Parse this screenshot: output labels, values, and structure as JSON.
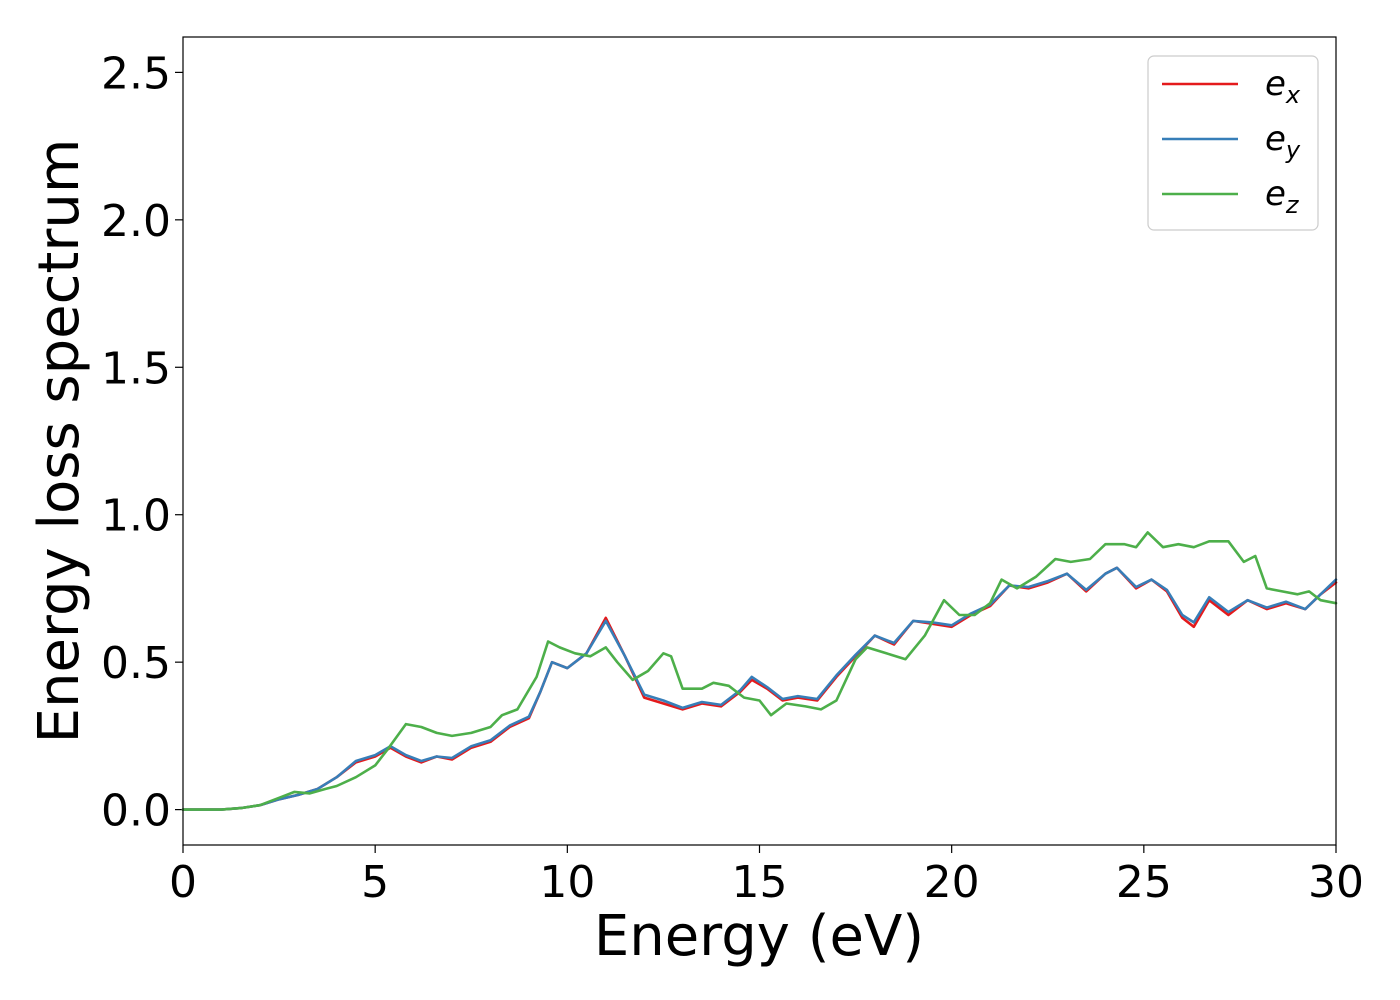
{
  "chart_data": {
    "type": "line",
    "title": "",
    "xlabel": "Energy (eV)",
    "ylabel": "Energy loss spectrum",
    "xlim": [
      0,
      30
    ],
    "ylim": [
      -0.12,
      2.62
    ],
    "xticks": [
      0,
      5,
      10,
      15,
      20,
      25,
      30
    ],
    "xtick_labels": [
      "0",
      "5",
      "10",
      "15",
      "20",
      "25",
      "30"
    ],
    "yticks": [
      0.0,
      0.5,
      1.0,
      1.5,
      2.0,
      2.5
    ],
    "ytick_labels": [
      "0.0",
      "0.5",
      "1.0",
      "1.5",
      "2.0",
      "2.5"
    ],
    "grid": false,
    "legend_position": "top-right",
    "series": [
      {
        "name": "e_x",
        "legend_base": "e",
        "legend_sub": "x",
        "color": "#e41a1c",
        "points": [
          [
            0,
            0.0
          ],
          [
            1,
            0.0
          ],
          [
            1.5,
            0.005
          ],
          [
            2,
            0.015
          ],
          [
            2.5,
            0.035
          ],
          [
            3,
            0.05
          ],
          [
            3.5,
            0.07
          ],
          [
            4,
            0.11
          ],
          [
            4.5,
            0.16
          ],
          [
            5,
            0.18
          ],
          [
            5.4,
            0.21
          ],
          [
            5.8,
            0.18
          ],
          [
            6.2,
            0.16
          ],
          [
            6.6,
            0.18
          ],
          [
            7,
            0.17
          ],
          [
            7.5,
            0.21
          ],
          [
            8,
            0.23
          ],
          [
            8.5,
            0.28
          ],
          [
            9,
            0.31
          ],
          [
            9.3,
            0.4
          ],
          [
            9.6,
            0.5
          ],
          [
            10,
            0.48
          ],
          [
            10.5,
            0.53
          ],
          [
            11,
            0.65
          ],
          [
            11.5,
            0.52
          ],
          [
            12,
            0.38
          ],
          [
            12.5,
            0.36
          ],
          [
            13,
            0.34
          ],
          [
            13.5,
            0.36
          ],
          [
            14,
            0.35
          ],
          [
            14.5,
            0.4
          ],
          [
            14.8,
            0.44
          ],
          [
            15.2,
            0.41
          ],
          [
            15.6,
            0.37
          ],
          [
            16,
            0.38
          ],
          [
            16.5,
            0.37
          ],
          [
            17,
            0.45
          ],
          [
            17.5,
            0.52
          ],
          [
            18,
            0.59
          ],
          [
            18.5,
            0.56
          ],
          [
            19,
            0.64
          ],
          [
            19.5,
            0.63
          ],
          [
            20,
            0.62
          ],
          [
            20.5,
            0.66
          ],
          [
            21,
            0.69
          ],
          [
            21.5,
            0.76
          ],
          [
            22,
            0.75
          ],
          [
            22.5,
            0.77
          ],
          [
            23,
            0.8
          ],
          [
            23.5,
            0.74
          ],
          [
            24,
            0.8
          ],
          [
            24.3,
            0.82
          ],
          [
            24.8,
            0.75
          ],
          [
            25.2,
            0.78
          ],
          [
            25.6,
            0.74
          ],
          [
            26,
            0.65
          ],
          [
            26.3,
            0.62
          ],
          [
            26.7,
            0.71
          ],
          [
            27.2,
            0.66
          ],
          [
            27.7,
            0.71
          ],
          [
            28.2,
            0.68
          ],
          [
            28.7,
            0.7
          ],
          [
            29.2,
            0.68
          ],
          [
            29.6,
            0.73
          ],
          [
            30,
            0.77
          ]
        ]
      },
      {
        "name": "e_y",
        "legend_base": "e",
        "legend_sub": "y",
        "color": "#377eb8",
        "points": [
          [
            0,
            0.0
          ],
          [
            1,
            0.0
          ],
          [
            1.5,
            0.005
          ],
          [
            2,
            0.015
          ],
          [
            2.5,
            0.035
          ],
          [
            3,
            0.05
          ],
          [
            3.5,
            0.07
          ],
          [
            4,
            0.11
          ],
          [
            4.5,
            0.165
          ],
          [
            5,
            0.185
          ],
          [
            5.4,
            0.215
          ],
          [
            5.8,
            0.185
          ],
          [
            6.2,
            0.165
          ],
          [
            6.6,
            0.18
          ],
          [
            7,
            0.175
          ],
          [
            7.5,
            0.215
          ],
          [
            8,
            0.235
          ],
          [
            8.5,
            0.285
          ],
          [
            9,
            0.315
          ],
          [
            9.3,
            0.4
          ],
          [
            9.6,
            0.5
          ],
          [
            10,
            0.48
          ],
          [
            10.5,
            0.53
          ],
          [
            11,
            0.64
          ],
          [
            11.5,
            0.52
          ],
          [
            12,
            0.39
          ],
          [
            12.5,
            0.37
          ],
          [
            13,
            0.345
          ],
          [
            13.5,
            0.365
          ],
          [
            14,
            0.355
          ],
          [
            14.5,
            0.405
          ],
          [
            14.8,
            0.45
          ],
          [
            15.2,
            0.415
          ],
          [
            15.6,
            0.375
          ],
          [
            16,
            0.385
          ],
          [
            16.5,
            0.375
          ],
          [
            17,
            0.455
          ],
          [
            17.5,
            0.525
          ],
          [
            18,
            0.59
          ],
          [
            18.5,
            0.565
          ],
          [
            19,
            0.64
          ],
          [
            19.5,
            0.635
          ],
          [
            20,
            0.625
          ],
          [
            20.5,
            0.665
          ],
          [
            21,
            0.695
          ],
          [
            21.5,
            0.76
          ],
          [
            22,
            0.755
          ],
          [
            22.5,
            0.775
          ],
          [
            23,
            0.8
          ],
          [
            23.5,
            0.745
          ],
          [
            24,
            0.8
          ],
          [
            24.3,
            0.82
          ],
          [
            24.8,
            0.755
          ],
          [
            25.2,
            0.78
          ],
          [
            25.6,
            0.745
          ],
          [
            26,
            0.66
          ],
          [
            26.3,
            0.635
          ],
          [
            26.7,
            0.72
          ],
          [
            27.2,
            0.67
          ],
          [
            27.7,
            0.71
          ],
          [
            28.2,
            0.685
          ],
          [
            28.7,
            0.705
          ],
          [
            29.2,
            0.68
          ],
          [
            29.6,
            0.73
          ],
          [
            30,
            0.78
          ]
        ]
      },
      {
        "name": "e_z",
        "legend_base": "e",
        "legend_sub": "z",
        "color": "#4daf4a",
        "points": [
          [
            0,
            0.0
          ],
          [
            1,
            0.0
          ],
          [
            1.5,
            0.005
          ],
          [
            2,
            0.015
          ],
          [
            2.5,
            0.04
          ],
          [
            2.9,
            0.06
          ],
          [
            3.3,
            0.055
          ],
          [
            3.7,
            0.07
          ],
          [
            4,
            0.08
          ],
          [
            4.5,
            0.11
          ],
          [
            5,
            0.15
          ],
          [
            5.3,
            0.2
          ],
          [
            5.8,
            0.29
          ],
          [
            6.2,
            0.28
          ],
          [
            6.6,
            0.26
          ],
          [
            7,
            0.25
          ],
          [
            7.5,
            0.26
          ],
          [
            8,
            0.28
          ],
          [
            8.3,
            0.32
          ],
          [
            8.7,
            0.34
          ],
          [
            9.2,
            0.45
          ],
          [
            9.5,
            0.57
          ],
          [
            9.8,
            0.55
          ],
          [
            10.2,
            0.53
          ],
          [
            10.6,
            0.52
          ],
          [
            11,
            0.55
          ],
          [
            11.3,
            0.5
          ],
          [
            11.7,
            0.44
          ],
          [
            12.1,
            0.47
          ],
          [
            12.5,
            0.53
          ],
          [
            12.7,
            0.52
          ],
          [
            13,
            0.41
          ],
          [
            13.5,
            0.41
          ],
          [
            13.8,
            0.43
          ],
          [
            14.2,
            0.42
          ],
          [
            14.6,
            0.38
          ],
          [
            15,
            0.37
          ],
          [
            15.3,
            0.32
          ],
          [
            15.7,
            0.36
          ],
          [
            16.2,
            0.35
          ],
          [
            16.6,
            0.34
          ],
          [
            17,
            0.37
          ],
          [
            17.5,
            0.51
          ],
          [
            17.8,
            0.55
          ],
          [
            18.3,
            0.53
          ],
          [
            18.8,
            0.51
          ],
          [
            19.3,
            0.59
          ],
          [
            19.8,
            0.71
          ],
          [
            20.2,
            0.66
          ],
          [
            20.6,
            0.66
          ],
          [
            21,
            0.7
          ],
          [
            21.3,
            0.78
          ],
          [
            21.7,
            0.75
          ],
          [
            22.2,
            0.79
          ],
          [
            22.7,
            0.85
          ],
          [
            23.1,
            0.84
          ],
          [
            23.6,
            0.85
          ],
          [
            24,
            0.9
          ],
          [
            24.5,
            0.9
          ],
          [
            24.8,
            0.89
          ],
          [
            25.1,
            0.94
          ],
          [
            25.5,
            0.89
          ],
          [
            25.9,
            0.9
          ],
          [
            26.3,
            0.89
          ],
          [
            26.7,
            0.91
          ],
          [
            27.2,
            0.91
          ],
          [
            27.6,
            0.84
          ],
          [
            27.9,
            0.86
          ],
          [
            28.2,
            0.75
          ],
          [
            28.6,
            0.74
          ],
          [
            29,
            0.73
          ],
          [
            29.3,
            0.74
          ],
          [
            29.6,
            0.71
          ],
          [
            30,
            0.7
          ]
        ]
      }
    ]
  }
}
